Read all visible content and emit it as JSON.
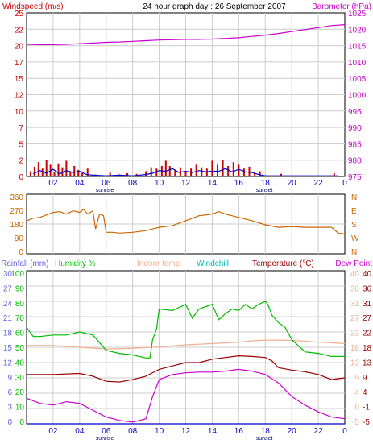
{
  "colors": {
    "red": "#cc0000",
    "magenta": "#cc00cc",
    "blue": "#0000cc",
    "orange": "#cc6600",
    "green": "#00bb00",
    "peach": "#f0b090",
    "cyan": "#00bbbb",
    "maroon": "#990000",
    "rainblue": "#6666dd",
    "grid": "#cccccc",
    "frame": "#000000"
  },
  "chart_data": [
    {
      "type": "line",
      "title": "24 hour graph day : 26 September 2007",
      "left_label": "Windspeed (m/s)",
      "right_label": "Barometer (hPa)",
      "x_ticks": [
        "02",
        "04",
        "06",
        "08",
        "10",
        "12",
        "14",
        "16",
        "18",
        "20",
        "22",
        "0"
      ],
      "x_markers": [
        "sunrise",
        "sunset"
      ],
      "left_ticks": [
        "0",
        "2",
        "5",
        "7",
        "10",
        "12",
        "15",
        "17",
        "20",
        "22",
        "25"
      ],
      "left_ylim": [
        0,
        25
      ],
      "right_ticks": [
        "975",
        "980",
        "985",
        "990",
        "995",
        "1000",
        "1005",
        "1010",
        "1015",
        "1020",
        "1025"
      ],
      "right_ylim": [
        975,
        1025
      ],
      "grid": true,
      "series": [
        {
          "name": "Barometer (hPa)",
          "axis": "right",
          "color": "#cc00cc",
          "x": [
            0,
            1,
            2,
            3,
            4,
            5,
            6,
            7,
            8,
            9,
            10,
            11,
            12,
            13,
            14,
            15,
            16,
            17,
            18,
            19,
            20,
            21,
            22,
            23,
            24
          ],
          "values": [
            1015.4,
            1015.3,
            1015.3,
            1015.4,
            1015.6,
            1015.8,
            1016.0,
            1016.1,
            1016.3,
            1016.5,
            1016.7,
            1016.8,
            1016.9,
            1016.9,
            1017.0,
            1017.2,
            1017.4,
            1017.8,
            1018.2,
            1018.7,
            1019.3,
            1019.9,
            1020.5,
            1021.1,
            1021.4
          ]
        },
        {
          "name": "Windspeed gust",
          "axis": "left",
          "color": "#cc0000",
          "x": [
            0.3,
            0.6,
            0.9,
            1.2,
            1.5,
            1.8,
            2.1,
            2.4,
            2.7,
            3.0,
            3.3,
            3.6,
            3.9,
            4.2,
            4.6,
            5.2,
            6.3,
            7.0,
            7.6,
            8.3,
            9.0,
            9.4,
            9.8,
            10.2,
            10.5,
            10.8,
            11.2,
            11.6,
            12.0,
            12.4,
            12.8,
            13.2,
            13.6,
            14.0,
            14.4,
            14.8,
            15.2,
            15.6,
            16.0,
            16.4,
            16.8,
            17.2,
            17.6,
            19.2,
            23.2
          ],
          "values": [
            0.8,
            1.5,
            2.2,
            1.2,
            2.5,
            1.8,
            0.6,
            2.0,
            1.4,
            2.4,
            0.8,
            1.6,
            1.0,
            0.5,
            1.2,
            0.3,
            0.6,
            0.3,
            0.5,
            0.4,
            0.8,
            1.4,
            1.2,
            1.6,
            2.4,
            1.6,
            1.0,
            1.4,
            0.8,
            1.2,
            1.8,
            1.4,
            1.2,
            2.4,
            1.8,
            2.5,
            1.6,
            2.2,
            1.8,
            1.2,
            1.5,
            0.6,
            0.8,
            0.4,
            0.5
          ]
        },
        {
          "name": "Windspeed average",
          "axis": "left",
          "color": "#0000cc",
          "x": [
            0.5,
            1.0,
            1.5,
            2.0,
            2.5,
            3.0,
            3.5,
            4.0,
            4.5,
            5.0,
            6.0,
            7.0,
            8.0,
            9.0,
            9.5,
            10.0,
            10.5,
            11.0,
            11.5,
            12.0,
            12.5,
            13.0,
            13.5,
            14.0,
            14.5,
            15.0,
            15.5,
            16.0,
            16.5,
            17.0,
            17.5,
            18.0,
            20.0,
            22.0,
            23.5
          ],
          "values": [
            0.4,
            0.9,
            0.5,
            1.1,
            0.4,
            0.9,
            0.6,
            0.8,
            0.3,
            0.2,
            0.1,
            0.2,
            0.1,
            0.3,
            0.5,
            0.9,
            0.8,
            1.2,
            0.6,
            0.8,
            0.6,
            0.9,
            0.7,
            0.8,
            0.8,
            1.2,
            0.7,
            1.1,
            0.7,
            0.6,
            0.3,
            0.1,
            0.1,
            0.1,
            0.1
          ]
        }
      ]
    },
    {
      "type": "line",
      "title": "",
      "left_ticks": [
        "0",
        "90",
        "180",
        "270",
        "360"
      ],
      "ylim": [
        0,
        360
      ],
      "right_labels": [
        "N",
        "W",
        "S",
        "E",
        "N"
      ],
      "grid": true,
      "series": [
        {
          "name": "Wind direction",
          "color": "#cc6600",
          "x": [
            0,
            0.5,
            1,
            1.5,
            2,
            2.5,
            3,
            3.5,
            4,
            4.3,
            4.6,
            5.0,
            5.2,
            5.5,
            5.8,
            6.0,
            6.5,
            7,
            8,
            9,
            10,
            11,
            12,
            13,
            14,
            14.5,
            15,
            16,
            17,
            18,
            19,
            20,
            21,
            22,
            23,
            23.5,
            24
          ],
          "values": [
            200,
            215,
            220,
            235,
            250,
            255,
            240,
            260,
            250,
            270,
            240,
            260,
            150,
            240,
            230,
            130,
            130,
            125,
            130,
            140,
            160,
            170,
            200,
            230,
            240,
            255,
            240,
            220,
            200,
            175,
            160,
            165,
            160,
            160,
            160,
            125,
            120
          ]
        }
      ]
    },
    {
      "type": "line",
      "title": "",
      "header_labels": [
        "Rainfall (mm)",
        "Humidity %",
        "Indoor temp",
        "Windchill",
        "Temperature (°C)",
        "Dew Point"
      ],
      "x_ticks": [
        "02",
        "04",
        "06",
        "08",
        "10",
        "12",
        "14",
        "16",
        "18",
        "20",
        "22",
        "0"
      ],
      "x_markers": [
        "sunrise",
        "sunset"
      ],
      "rain_ticks": [
        "0",
        "3",
        "6",
        "9",
        "12",
        "15",
        "18",
        "21",
        "24",
        "27",
        "30"
      ],
      "rain_ylim": [
        0,
        30
      ],
      "humidity_ticks": [
        "0",
        "10",
        "20",
        "30",
        "40",
        "50",
        "60",
        "70",
        "80",
        "90",
        "100"
      ],
      "humidity_ylim": [
        0,
        100
      ],
      "indoor_ticks": [
        "-5",
        "0",
        "4",
        "9",
        "13",
        "18",
        "22",
        "27",
        "31",
        "36",
        "40"
      ],
      "temp_ticks": [
        "-5",
        "-1",
        "4",
        "9",
        "13",
        "18",
        "22",
        "27",
        "31",
        "36",
        "40"
      ],
      "temp_ylim": [
        -5,
        40
      ],
      "grid": true,
      "series": [
        {
          "name": "Humidity %",
          "color": "#00bb00",
          "x": [
            0,
            0.5,
            1,
            2,
            3,
            4,
            5,
            5.5,
            6,
            7,
            8,
            9,
            9.3,
            9.5,
            9.8,
            10,
            11,
            12,
            12.5,
            13,
            14,
            14.5,
            15,
            15.5,
            16,
            16.5,
            17,
            17.5,
            18,
            18.2,
            18.5,
            19,
            19.5,
            20,
            20.5,
            21,
            22,
            23,
            24
          ],
          "values": [
            63,
            57,
            57,
            58,
            58,
            60,
            58,
            53,
            48,
            46,
            45,
            43,
            43,
            55,
            62,
            75,
            74,
            78,
            69,
            75,
            78,
            68,
            72,
            75,
            74,
            78,
            75,
            78,
            80,
            78,
            71,
            66,
            63,
            55,
            51,
            47,
            46,
            44,
            44
          ]
        },
        {
          "name": "Indoor temp",
          "color": "#f0b090",
          "x": [
            0,
            2,
            4,
            6,
            8,
            10,
            12,
            14,
            16,
            17,
            18,
            19,
            20,
            21,
            22,
            23,
            24
          ],
          "values": [
            18.0,
            18.0,
            17.5,
            17.0,
            17.2,
            17.6,
            18.2,
            18.6,
            19.0,
            19.4,
            19.6,
            19.6,
            19.5,
            19.3,
            19.0,
            18.8,
            18.6
          ]
        },
        {
          "name": "Temperature (°C)",
          "color": "#990000",
          "x": [
            0,
            2,
            4,
            5,
            6,
            7,
            8,
            9,
            10,
            11,
            12,
            13,
            14,
            15,
            16,
            17,
            18,
            18.5,
            19,
            20,
            21,
            22,
            23,
            24
          ],
          "values": [
            9.5,
            9.5,
            9.8,
            9.0,
            7.5,
            7.3,
            8.0,
            9.0,
            11.0,
            12.0,
            13.0,
            13.0,
            14.0,
            14.5,
            15.0,
            14.8,
            14.5,
            13.5,
            11.5,
            10.8,
            10.3,
            9.5,
            8.0,
            8.5
          ]
        },
        {
          "name": "Dew Point",
          "color": "#cc00cc",
          "x": [
            0,
            1,
            2,
            3,
            4,
            5,
            6,
            7,
            8,
            9,
            9.5,
            10,
            11,
            12,
            13,
            14,
            15,
            16,
            17,
            18,
            19,
            20,
            21,
            22,
            23,
            24
          ],
          "values": [
            2.5,
            1.0,
            0.5,
            1.5,
            1.0,
            -1.0,
            -3.0,
            -4.0,
            -4.5,
            -3.5,
            3.0,
            8.0,
            9.5,
            10.0,
            10.2,
            10.2,
            10.5,
            11.0,
            10.5,
            9.5,
            7.0,
            3.0,
            0.5,
            -1.5,
            -3.0,
            -3.5
          ]
        },
        {
          "name": "Rainfall (mm)",
          "color": "#0000cc",
          "axis": "rain",
          "x": [
            0,
            24
          ],
          "values": [
            0,
            0
          ]
        }
      ]
    }
  ]
}
